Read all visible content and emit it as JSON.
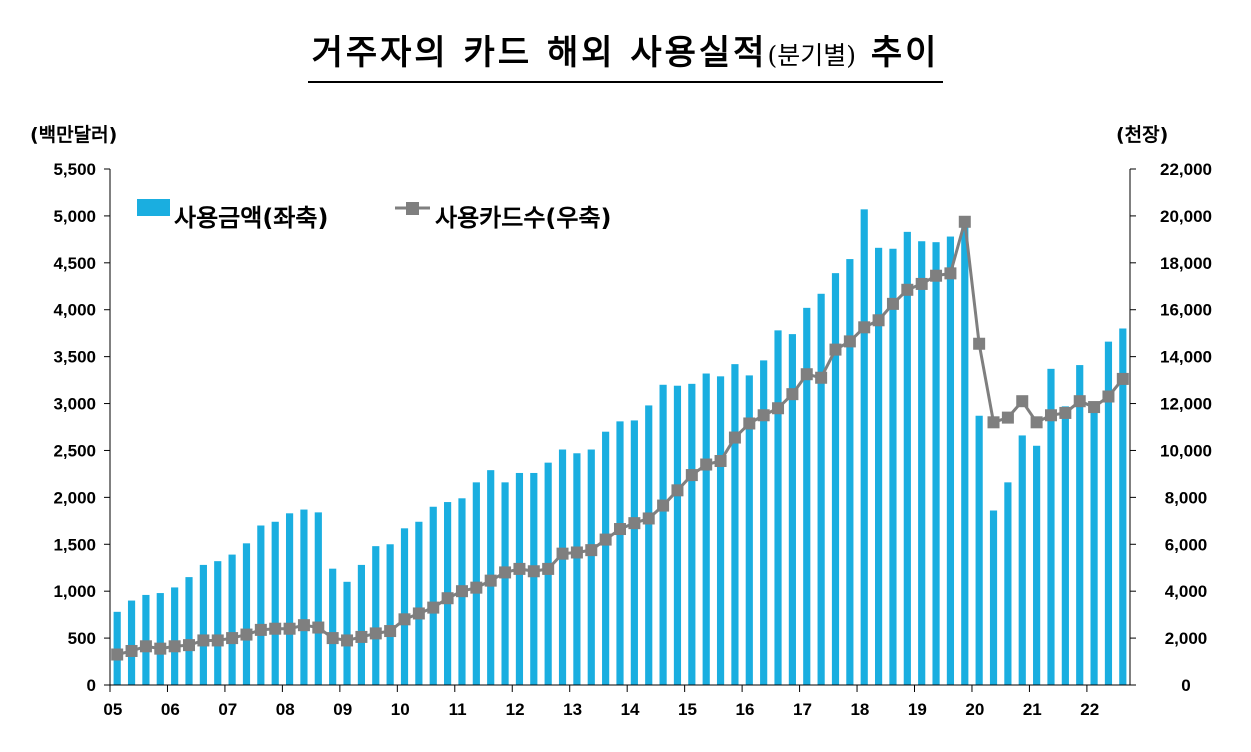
{
  "title": {
    "main_before": "거주자의 카드 해외 사용실적",
    "paren": "(분기별)",
    "main_after": "추이"
  },
  "chart_data": {
    "type": "bar",
    "left_unit": "(백만달러)",
    "right_unit": "(천장)",
    "x_tick_labels": [
      "05",
      "06",
      "07",
      "08",
      "09",
      "10",
      "11",
      "12",
      "13",
      "14",
      "15",
      "16",
      "17",
      "18",
      "19",
      "20",
      "21",
      "22"
    ],
    "left_ylim": [
      0,
      5500
    ],
    "left_ticks": [
      "0",
      "500",
      "1,000",
      "1,500",
      "2,000",
      "2,500",
      "3,000",
      "3,500",
      "4,000",
      "4,500",
      "5,000",
      "5,500"
    ],
    "right_ylim": [
      0,
      22000
    ],
    "right_ticks": [
      "0",
      "2,000",
      "4,000",
      "6,000",
      "8,000",
      "10,000",
      "12,000",
      "14,000",
      "16,000",
      "18,000",
      "20,000",
      "22,000"
    ],
    "legend": [
      "사용금액(좌축)",
      "사용카드수(우축)"
    ],
    "bar_color": "#1aaee0",
    "line_color": "#7f7f7f",
    "series": [
      {
        "name": "사용금액(좌축)",
        "axis": "left",
        "type": "bar",
        "values": [
          780,
          900,
          960,
          980,
          1040,
          1150,
          1280,
          1320,
          1390,
          1510,
          1700,
          1740,
          1830,
          1870,
          1840,
          1240,
          1100,
          1280,
          1480,
          1500,
          1670,
          1740,
          1900,
          1950,
          1990,
          2160,
          2290,
          2160,
          2260,
          2260,
          2370,
          2510,
          2470,
          2510,
          2700,
          2810,
          2820,
          2980,
          3200,
          3190,
          3210,
          3320,
          3290,
          3420,
          3300,
          3460,
          3780,
          3740,
          4020,
          4170,
          4390,
          4540,
          5070,
          4660,
          4650,
          4830,
          4730,
          4720,
          4780,
          4940,
          2870,
          1860,
          2160,
          2660,
          2550,
          3370,
          2970,
          3410,
          3000,
          3660,
          3800
        ]
      },
      {
        "name": "사용카드수(우축)",
        "axis": "right",
        "type": "line",
        "values": [
          1300,
          1450,
          1650,
          1550,
          1650,
          1700,
          1900,
          1900,
          2000,
          2150,
          2350,
          2400,
          2400,
          2550,
          2450,
          2000,
          1900,
          2050,
          2200,
          2300,
          2800,
          3050,
          3300,
          3700,
          4000,
          4150,
          4450,
          4800,
          4950,
          4850,
          4950,
          5600,
          5650,
          5750,
          6200,
          6650,
          6900,
          7100,
          7650,
          8300,
          8950,
          9400,
          9550,
          10550,
          11150,
          11500,
          11800,
          12400,
          13250,
          13100,
          14300,
          14650,
          15250,
          15550,
          16250,
          16850,
          17100,
          17450,
          17550,
          19750,
          14550,
          11200,
          11400,
          12100,
          11200,
          11500,
          11600,
          12100,
          11850,
          12300,
          13050
        ]
      }
    ]
  }
}
